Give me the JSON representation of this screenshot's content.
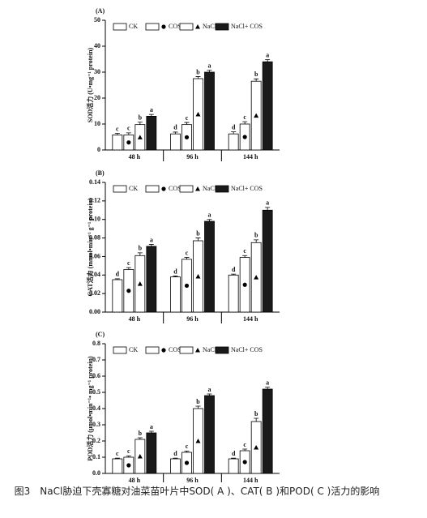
{
  "chart_data": [
    {
      "type": "bar",
      "panel": "(A)",
      "ylabel": "SOD活力 (U•mg⁻¹ protein)",
      "categories": [
        "48 h",
        "96 h",
        "144 h"
      ],
      "series": [
        {
          "name": "CK",
          "color": "#ffffff",
          "marker": null,
          "values": [
            5.8,
            6.2,
            6.2
          ],
          "errors": [
            0.6,
            0.7,
            0.8
          ],
          "letters": [
            "c",
            "d",
            "d"
          ]
        },
        {
          "name": "COS",
          "color": "#ffffff",
          "marker": "circle",
          "values": [
            5.8,
            9.8,
            10
          ],
          "errors": [
            0.8,
            0.8,
            0.9
          ],
          "letters": [
            "c",
            "c",
            "c"
          ]
        },
        {
          "name": "NaCl",
          "color": "#ffffff",
          "marker": "triangle",
          "values": [
            9.8,
            27.5,
            26.5
          ],
          "errors": [
            0.9,
            0.8,
            0.9
          ],
          "letters": [
            "b",
            "b",
            "b"
          ]
        },
        {
          "name": "NaCl+ COS",
          "color": "#1a1a1a",
          "marker": null,
          "values": [
            13,
            30,
            34
          ],
          "errors": [
            0.7,
            0.7,
            0.8
          ],
          "letters": [
            "a",
            "a",
            "a"
          ]
        }
      ],
      "ylim": [
        0,
        50
      ],
      "yticks": [
        0,
        10,
        20,
        30,
        40,
        50
      ]
    },
    {
      "type": "bar",
      "panel": "(B)",
      "ylabel": "CAT活力 (mmol•min⁻¹ g⁻¹ protein)",
      "categories": [
        "48 h",
        "96 h",
        "144 h"
      ],
      "series": [
        {
          "name": "CK",
          "color": "#ffffff",
          "marker": null,
          "values": [
            0.035,
            0.038,
            0.04
          ],
          "errors": [
            0.001,
            0.001,
            0.001
          ],
          "letters": [
            "d",
            "d",
            "d"
          ]
        },
        {
          "name": "COS",
          "color": "#ffffff",
          "marker": "circle",
          "values": [
            0.046,
            0.057,
            0.059
          ],
          "errors": [
            0.002,
            0.002,
            0.002
          ],
          "letters": [
            "c",
            "c",
            "c"
          ]
        },
        {
          "name": "NaCl",
          "color": "#ffffff",
          "marker": "triangle",
          "values": [
            0.061,
            0.077,
            0.075
          ],
          "errors": [
            0.003,
            0.003,
            0.003
          ],
          "letters": [
            "b",
            "b",
            "b"
          ]
        },
        {
          "name": "NaCl+ COS",
          "color": "#1a1a1a",
          "marker": null,
          "values": [
            0.071,
            0.098,
            0.11
          ],
          "errors": [
            0.002,
            0.002,
            0.003
          ],
          "letters": [
            "a",
            "a",
            "a"
          ]
        }
      ],
      "ylim": [
        0,
        0.14
      ],
      "yticks": [
        {
          "value": 0,
          "label": "0.00"
        },
        {
          "value": 0.02,
          "label": "0.02"
        },
        {
          "value": 0.04,
          "label": "0.04"
        },
        {
          "value": 0.06,
          "label": "0.06"
        },
        {
          "value": 0.08,
          "label": "0.08"
        },
        {
          "value": 0.1,
          "label": "0.10"
        },
        {
          "value": 0.12,
          "label": "0.12"
        },
        {
          "value": 0.14,
          "label": "0.14"
        }
      ]
    },
    {
      "type": "bar",
      "panel": "(C)",
      "ylabel": "POD活力 (μmol•min⁻¹• mg⁻¹ protein)",
      "categories": [
        "48 h",
        "96 h",
        "144 h"
      ],
      "series": [
        {
          "name": "CK",
          "color": "#ffffff",
          "marker": null,
          "values": [
            0.09,
            0.09,
            0.09
          ],
          "errors": [
            0.004,
            0.004,
            0.004
          ],
          "letters": [
            "c",
            "d",
            "d"
          ]
        },
        {
          "name": "COS",
          "color": "#ffffff",
          "marker": "circle",
          "values": [
            0.1,
            0.13,
            0.14
          ],
          "errors": [
            0.008,
            0.008,
            0.01
          ],
          "letters": [
            "c",
            "c",
            "c"
          ]
        },
        {
          "name": "NaCl",
          "color": "#ffffff",
          "marker": "triangle",
          "values": [
            0.21,
            0.4,
            0.32
          ],
          "errors": [
            0.01,
            0.015,
            0.02
          ],
          "letters": [
            "b",
            "b",
            "b"
          ]
        },
        {
          "name": "NaCl+ COS",
          "color": "#1a1a1a",
          "marker": null,
          "values": [
            0.25,
            0.48,
            0.52
          ],
          "errors": [
            0.01,
            0.01,
            0.012
          ],
          "letters": [
            "a",
            "a",
            "a"
          ]
        }
      ],
      "ylim": [
        0,
        0.8
      ],
      "yticks": [
        {
          "value": 0,
          "label": "0.0"
        },
        {
          "value": 0.1,
          "label": "0.1"
        },
        {
          "value": 0.2,
          "label": "0.2"
        },
        {
          "value": 0.3,
          "label": "0.3"
        },
        {
          "value": 0.4,
          "label": "0.4"
        },
        {
          "value": 0.5,
          "label": "0.5"
        },
        {
          "value": 0.6,
          "label": "0.6"
        },
        {
          "value": 0.7,
          "label": "0.7"
        },
        {
          "value": 0.8,
          "label": "0.8"
        }
      ]
    }
  ],
  "caption": "图3　NaCl胁迫下壳寡糖对油菜苗叶片中SOD( A )、CAT( B )和POD( C )活力的影响"
}
